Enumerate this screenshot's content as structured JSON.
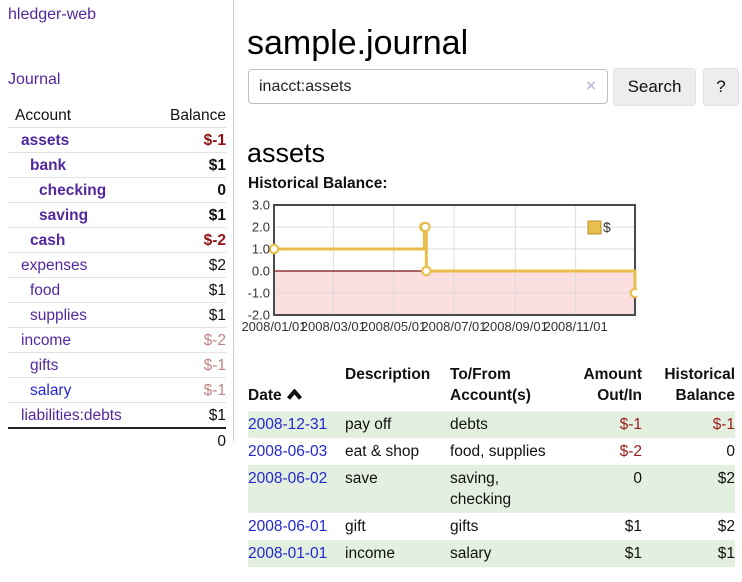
{
  "app": {
    "brand": "hledger-web",
    "nav": {
      "journal": "Journal"
    }
  },
  "colors": {
    "link_purple": "#53289e",
    "link_blue": "#2327cf",
    "negative_strong": "#8f1212",
    "negative_soft": "#c28383",
    "register_row_green": "#e3f0df"
  },
  "sidebar": {
    "accounts_table": {
      "col_account": "Account",
      "col_balance": "Balance",
      "rows": [
        {
          "account": "assets",
          "balance": "$-1",
          "indent": 0,
          "bold": true,
          "balance_tone": "negative-strong",
          "link_tone": "purple"
        },
        {
          "account": "bank",
          "balance": "$1",
          "indent": 1,
          "bold": true,
          "balance_tone": "normal",
          "link_tone": "purple"
        },
        {
          "account": "checking",
          "balance": "0",
          "indent": 2,
          "bold": true,
          "balance_tone": "normal",
          "link_tone": "purple"
        },
        {
          "account": "saving",
          "balance": "$1",
          "indent": 2,
          "bold": true,
          "balance_tone": "normal",
          "link_tone": "purple"
        },
        {
          "account": "cash",
          "balance": "$-2",
          "indent": 1,
          "bold": true,
          "balance_tone": "negative-strong",
          "link_tone": "purple"
        },
        {
          "account": "expenses",
          "balance": "$2",
          "indent": 0,
          "bold": false,
          "balance_tone": "normal",
          "link_tone": "purple"
        },
        {
          "account": "food",
          "balance": "$1",
          "indent": 1,
          "bold": false,
          "balance_tone": "normal",
          "link_tone": "purple"
        },
        {
          "account": "supplies",
          "balance": "$1",
          "indent": 1,
          "bold": false,
          "balance_tone": "normal",
          "link_tone": "purple"
        },
        {
          "account": "income",
          "balance": "$-2",
          "indent": 0,
          "bold": false,
          "balance_tone": "negative-soft",
          "link_tone": "purple"
        },
        {
          "account": "gifts",
          "balance": "$-1",
          "indent": 1,
          "bold": false,
          "balance_tone": "negative-soft",
          "link_tone": "purple"
        },
        {
          "account": "salary",
          "balance": "$-1",
          "indent": 1,
          "bold": false,
          "balance_tone": "negative-soft",
          "link_tone": "blue"
        },
        {
          "account": "liabilities:debts",
          "balance": "$1",
          "indent": 0,
          "bold": false,
          "balance_tone": "normal",
          "link_tone": "purple"
        }
      ],
      "total": "0"
    }
  },
  "main": {
    "title": "sample.journal",
    "search": {
      "value": "inacct:assets",
      "clear_icon": "×",
      "search_button": "Search",
      "help_button": "?"
    },
    "account_heading": "assets",
    "section_label": "Historical Balance:"
  },
  "chart_data": {
    "type": "line",
    "title": "Historical Balance",
    "step": "after",
    "ylim": [
      -2,
      3
    ],
    "xlim_days": [
      0,
      365
    ],
    "y_ticks": [
      "3.0",
      "2.0",
      "1.0",
      "0.0",
      "-1.0",
      "-2.0"
    ],
    "x_ticks": [
      {
        "label": "2008/01/01",
        "day": 0
      },
      {
        "label": "2008/03/01",
        "day": 60
      },
      {
        "label": "2008/05/01",
        "day": 121
      },
      {
        "label": "2008/07/01",
        "day": 182
      },
      {
        "label": "2008/09/01",
        "day": 244
      },
      {
        "label": "2008/11/01",
        "day": 305
      }
    ],
    "series": [
      {
        "name": "$",
        "color": "#e7bf4a",
        "points": [
          {
            "date": "2008-01-01",
            "day": 0,
            "value": 1
          },
          {
            "date": "2008-06-01",
            "day": 152,
            "value": 2
          },
          {
            "date": "2008-06-02",
            "day": 153,
            "value": 2
          },
          {
            "date": "2008-06-03",
            "day": 154,
            "value": 0
          },
          {
            "date": "2008-12-31",
            "day": 365,
            "value": -1
          }
        ]
      }
    ],
    "legend": {
      "position": "top-right",
      "items": [
        {
          "label": "$",
          "color": "#e7bf4a"
        }
      ]
    },
    "grid": true,
    "negative_fill": "#fbdede",
    "zero_line_color": "#7d1212",
    "border_color": "#4a4a4a"
  },
  "register": {
    "columns": [
      "Date",
      "Description",
      "To/From\nAccount(s)",
      "Amount\nOut/In",
      "Historical\nBalance"
    ],
    "sort": {
      "column": "Date",
      "direction": "ascending"
    },
    "rows": [
      {
        "date": "2008-12-31",
        "description": "pay off",
        "accounts": "debts",
        "amount": "$-1",
        "amount_negative": true,
        "balance": "$-1",
        "balance_negative": true,
        "shaded": true
      },
      {
        "date": "2008-06-03",
        "description": "eat & shop",
        "accounts": "food, supplies",
        "amount": "$-2",
        "amount_negative": true,
        "balance": "0",
        "balance_negative": false,
        "shaded": false
      },
      {
        "date": "2008-06-02",
        "description": "save",
        "accounts": "saving,\nchecking",
        "amount": "0",
        "amount_negative": false,
        "balance": "$2",
        "balance_negative": false,
        "shaded": true
      },
      {
        "date": "2008-06-01",
        "description": "gift",
        "accounts": "gifts",
        "amount": "$1",
        "amount_negative": false,
        "balance": "$2",
        "balance_negative": false,
        "shaded": false
      },
      {
        "date": "2008-01-01",
        "description": "income",
        "accounts": "salary",
        "amount": "$1",
        "amount_negative": false,
        "balance": "$1",
        "balance_negative": false,
        "shaded": true
      }
    ]
  }
}
